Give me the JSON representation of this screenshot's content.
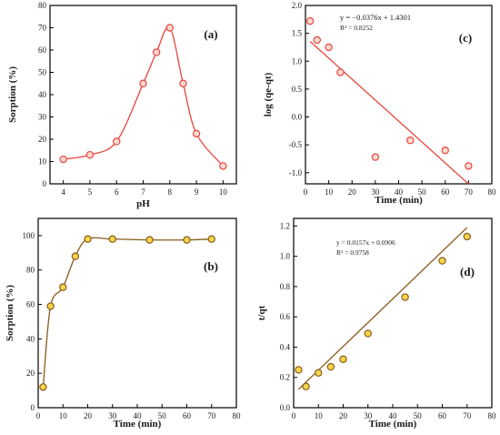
{
  "chart_data": [
    {
      "type": "line",
      "panel_label": "(a)",
      "xlabel": "pH",
      "ylabel": "Sorption (%)",
      "xlim": [
        3.5,
        10.5
      ],
      "ylim": [
        0,
        80
      ],
      "xticks": [
        4,
        5,
        6,
        7,
        8,
        9,
        10
      ],
      "yticks": [
        0,
        10,
        20,
        30,
        40,
        50,
        60,
        70,
        80
      ],
      "grid": false,
      "smooth": true,
      "color": "#e8453c",
      "marker_fill": "#fdd9d2",
      "series": [
        {
          "x": [
            4,
            5,
            6,
            7,
            7.5,
            8,
            8.5,
            9,
            10
          ],
          "y": [
            11,
            13,
            19,
            45,
            59,
            70,
            45,
            22.5,
            8
          ]
        }
      ]
    },
    {
      "type": "scatter",
      "panel_label": "(c)",
      "xlabel": "Time (min)",
      "ylabel": "log (qe-qt)",
      "xlim": [
        0,
        80
      ],
      "ylim": [
        -1.2,
        2.0
      ],
      "xticks": [
        0,
        10,
        20,
        30,
        40,
        50,
        60,
        70,
        80
      ],
      "yticks": [
        -1.0,
        -0.5,
        0.0,
        0.5,
        1.0,
        1.5,
        2.0
      ],
      "grid": false,
      "color": "#e8453c",
      "marker_fill": "#fdd9d2",
      "equation": "y = −0.0376x + 1.4301",
      "r2": "R² = 0.8252",
      "fit": {
        "slope": -0.0376,
        "intercept": 1.4301,
        "x_from": 2,
        "x_to": 70
      },
      "series": [
        {
          "x": [
            2,
            5,
            10,
            15,
            30,
            45,
            60,
            70
          ],
          "y": [
            1.72,
            1.38,
            1.25,
            0.8,
            -0.72,
            -0.42,
            -0.6,
            -0.88
          ]
        }
      ]
    },
    {
      "type": "line",
      "panel_label": "(b)",
      "xlabel": "Time (min)",
      "ylabel": "Sorption (%)",
      "xlim": [
        0,
        80
      ],
      "ylim": [
        0,
        110
      ],
      "xticks": [
        0,
        10,
        20,
        30,
        40,
        50,
        60,
        70,
        80
      ],
      "yticks": [
        0,
        20,
        40,
        60,
        80,
        100
      ],
      "grid": false,
      "smooth": true,
      "color": "#8a5a1c",
      "marker_fill": "#f6d64a",
      "series": [
        {
          "x": [
            2,
            5,
            10,
            15,
            20,
            30,
            45,
            60,
            70
          ],
          "y": [
            12,
            59,
            70,
            88,
            98,
            98,
            97.5,
            97.5,
            98
          ]
        }
      ]
    },
    {
      "type": "scatter",
      "panel_label": "(d)",
      "xlabel": "Time (min)",
      "ylabel": "t/qt",
      "xlim": [
        0,
        80
      ],
      "ylim": [
        0,
        1.25
      ],
      "xticks": [
        0,
        10,
        20,
        30,
        40,
        50,
        60,
        70,
        80
      ],
      "yticks": [
        0.0,
        0.2,
        0.4,
        0.6,
        0.8,
        1.0,
        1.2
      ],
      "grid": false,
      "color": "#8a5a1c",
      "marker_fill": "#f6d64a",
      "equation": "y = 0.0157x + 0.0906",
      "r2": "R² = 0.9758",
      "fit": {
        "slope": 0.0157,
        "intercept": 0.0906,
        "x_from": 2,
        "x_to": 70
      },
      "series": [
        {
          "x": [
            2,
            5,
            10,
            15,
            20,
            30,
            45,
            60,
            70
          ],
          "y": [
            0.25,
            0.14,
            0.23,
            0.27,
            0.32,
            0.49,
            0.73,
            0.97,
            1.13
          ]
        }
      ]
    }
  ]
}
